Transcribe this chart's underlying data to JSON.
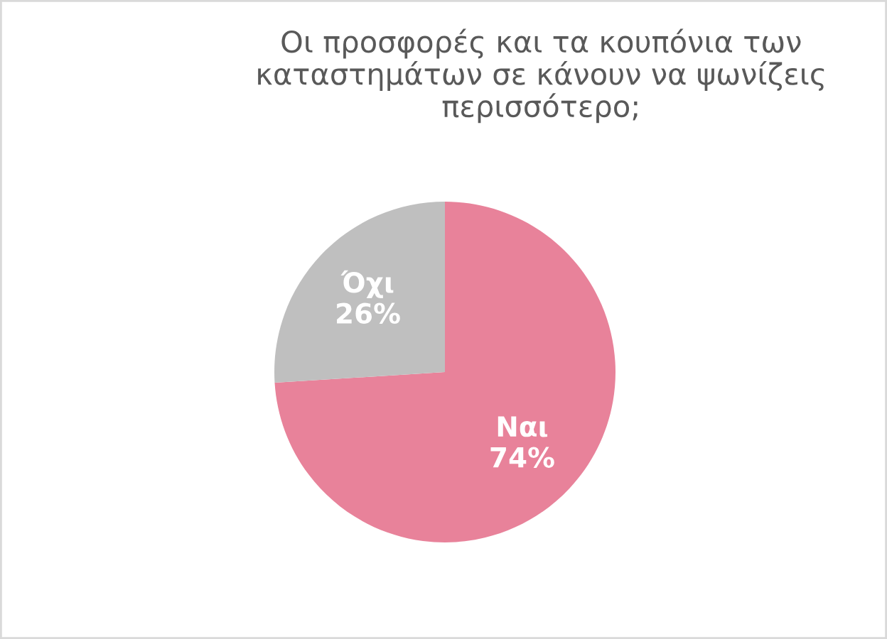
{
  "chart_data": {
    "type": "pie",
    "title": "Οι προσφορές και τα κουπόνια των\nκαταστημάτων σε κάνουν να ψωνίζεις\nπερισσότερο;",
    "categories": [
      "Ναι",
      "Όχι"
    ],
    "values": [
      74,
      26
    ],
    "colors": [
      "#e8829a",
      "#bfbfbf"
    ],
    "value_labels": [
      "74%",
      "26%"
    ],
    "legend": false
  }
}
